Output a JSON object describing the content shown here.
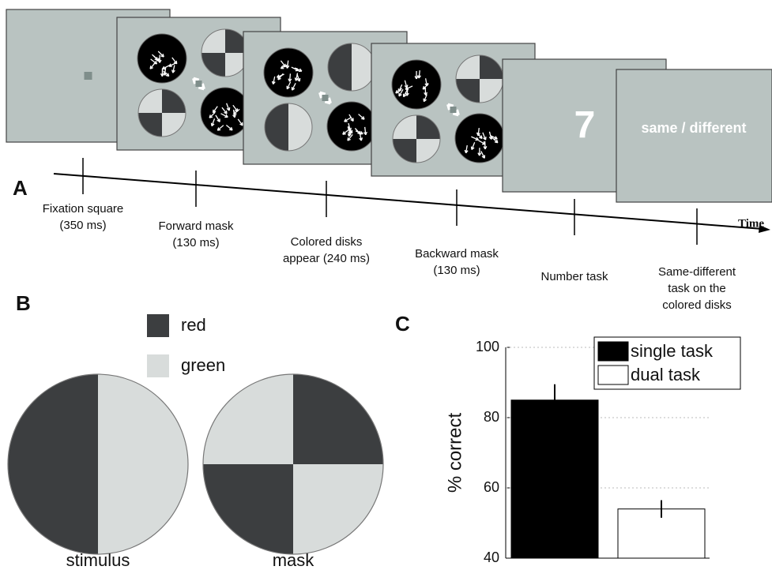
{
  "panel_a": {
    "label": "A",
    "screen_texts": [
      "7",
      "same / different"
    ],
    "time_label": "Time",
    "events": [
      {
        "lines": [
          "Fixation square",
          "(350 ms)"
        ]
      },
      {
        "lines": [
          "Forward mask",
          "(130 ms)"
        ]
      },
      {
        "lines": [
          "Colored disks",
          "appear (240 ms)"
        ]
      },
      {
        "lines": [
          "Backward mask",
          "(130 ms)"
        ]
      },
      {
        "lines": [
          "Number task"
        ]
      },
      {
        "lines": [
          "Same-different",
          "task on the",
          "colored disks"
        ]
      }
    ]
  },
  "panel_b": {
    "label": "B",
    "legend": [
      {
        "name": "red",
        "color": "#3c3e40"
      },
      {
        "name": "green",
        "color": "#d8dcdb"
      }
    ],
    "captions": [
      "stimulus",
      "mask"
    ]
  },
  "chart_data": {
    "type": "bar",
    "label": "C",
    "y_label": "% correct",
    "series": [
      {
        "name": "single task",
        "color": "#000000",
        "values": [
          85
        ],
        "errors": [
          4.5
        ]
      },
      {
        "name": "dual task",
        "color": "#ffffff",
        "values": [
          54
        ],
        "errors": [
          2.5
        ]
      }
    ],
    "ylim": [
      40,
      100
    ],
    "yticks": [
      40,
      60,
      80,
      100
    ],
    "grid": true,
    "legend": "top-right"
  }
}
